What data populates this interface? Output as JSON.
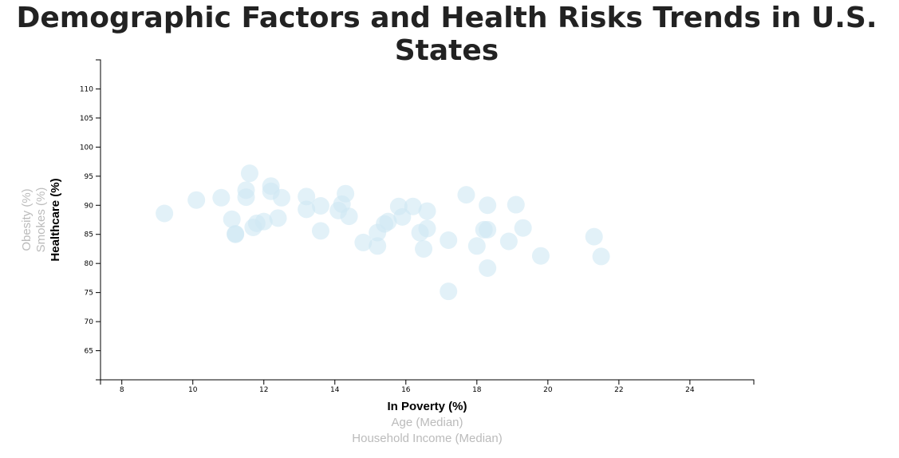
{
  "page": {
    "title": "Demographic Factors and Health Risks Trends in U.S. States"
  },
  "chart_data": {
    "type": "scatter",
    "title": "Demographic Factors and Health Risks Trends in U.S. States",
    "xlabel": "In Poverty (%)",
    "ylabel": "Healthcare (%)",
    "x_axis_options": [
      {
        "label": "In Poverty (%)",
        "active": true
      },
      {
        "label": "Age (Median)",
        "active": false
      },
      {
        "label": "Household Income (Median)",
        "active": false
      }
    ],
    "y_axis_options": [
      {
        "label": "Healthcare (%)",
        "active": true
      },
      {
        "label": "Smokes (%)",
        "active": false
      },
      {
        "label": "Obesity (%)",
        "active": false
      }
    ],
    "xlim": [
      7.4,
      25.8
    ],
    "ylim": [
      60,
      115
    ],
    "x_ticks": [
      8,
      10,
      12,
      14,
      16,
      18,
      20,
      22,
      24
    ],
    "y_ticks": [
      65,
      70,
      75,
      80,
      85,
      90,
      95,
      100,
      105,
      110
    ],
    "grid": false,
    "point_color": "#cfe8f3",
    "points": [
      {
        "x": 9.2,
        "y": 88.6
      },
      {
        "x": 10.1,
        "y": 90.9
      },
      {
        "x": 10.8,
        "y": 91.3
      },
      {
        "x": 11.1,
        "y": 87.6
      },
      {
        "x": 11.2,
        "y": 85.1
      },
      {
        "x": 11.2,
        "y": 85.0
      },
      {
        "x": 11.5,
        "y": 91.4
      },
      {
        "x": 11.5,
        "y": 92.6
      },
      {
        "x": 11.6,
        "y": 95.5
      },
      {
        "x": 11.7,
        "y": 86.2
      },
      {
        "x": 11.8,
        "y": 86.9
      },
      {
        "x": 12.0,
        "y": 87.2
      },
      {
        "x": 12.2,
        "y": 93.3
      },
      {
        "x": 12.2,
        "y": 92.4
      },
      {
        "x": 12.4,
        "y": 87.8
      },
      {
        "x": 12.5,
        "y": 91.3
      },
      {
        "x": 13.2,
        "y": 91.5
      },
      {
        "x": 13.2,
        "y": 89.3
      },
      {
        "x": 13.6,
        "y": 89.9
      },
      {
        "x": 13.6,
        "y": 85.6
      },
      {
        "x": 14.1,
        "y": 89.1
      },
      {
        "x": 14.2,
        "y": 90.2
      },
      {
        "x": 14.3,
        "y": 92.0
      },
      {
        "x": 14.4,
        "y": 88.1
      },
      {
        "x": 14.8,
        "y": 83.6
      },
      {
        "x": 15.2,
        "y": 83.0
      },
      {
        "x": 15.2,
        "y": 85.3
      },
      {
        "x": 15.4,
        "y": 86.8
      },
      {
        "x": 15.5,
        "y": 87.2
      },
      {
        "x": 15.8,
        "y": 89.8
      },
      {
        "x": 15.9,
        "y": 88.0
      },
      {
        "x": 16.2,
        "y": 89.8
      },
      {
        "x": 16.4,
        "y": 85.3
      },
      {
        "x": 16.5,
        "y": 82.5
      },
      {
        "x": 16.6,
        "y": 89.0
      },
      {
        "x": 16.6,
        "y": 86.0
      },
      {
        "x": 17.2,
        "y": 84.0
      },
      {
        "x": 17.2,
        "y": 75.2
      },
      {
        "x": 17.7,
        "y": 91.8
      },
      {
        "x": 18.0,
        "y": 83.0
      },
      {
        "x": 18.2,
        "y": 85.8
      },
      {
        "x": 18.3,
        "y": 85.8
      },
      {
        "x": 18.3,
        "y": 90.0
      },
      {
        "x": 18.3,
        "y": 79.2
      },
      {
        "x": 18.9,
        "y": 83.8
      },
      {
        "x": 19.1,
        "y": 90.1
      },
      {
        "x": 19.3,
        "y": 86.1
      },
      {
        "x": 19.8,
        "y": 81.3
      },
      {
        "x": 21.3,
        "y": 84.6
      },
      {
        "x": 21.5,
        "y": 81.2
      }
    ]
  }
}
